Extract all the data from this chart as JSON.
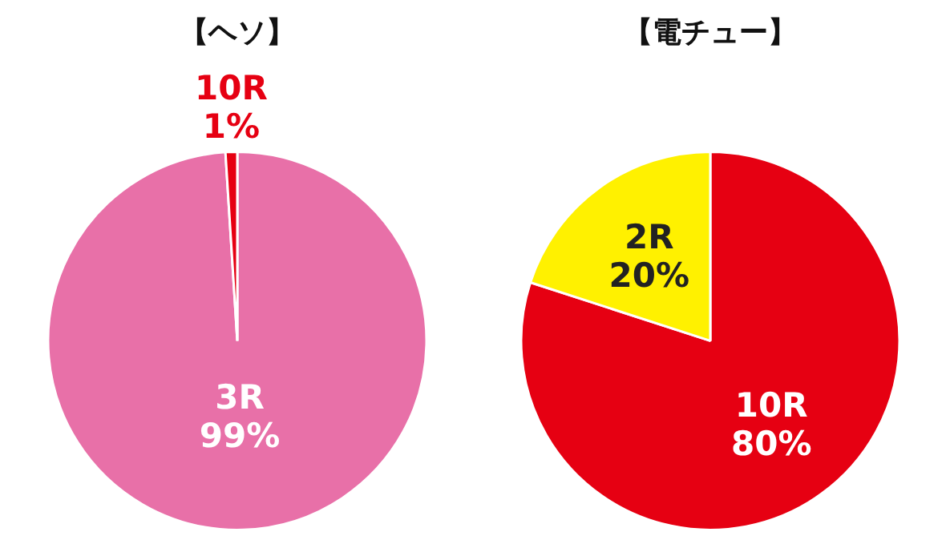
{
  "chart_data": [
    {
      "type": "pie",
      "title": "【ヘソ】",
      "categories": [
        "3R",
        "10R"
      ],
      "values": [
        99,
        1
      ],
      "value_labels": [
        "99%",
        "1%"
      ],
      "colors": [
        "#e870a8",
        "#e60012"
      ]
    },
    {
      "type": "pie",
      "title": "【電チュー】",
      "categories": [
        "10R",
        "2R"
      ],
      "values": [
        80,
        20
      ],
      "value_labels": [
        "80%",
        "20%"
      ],
      "colors": [
        "#e60012",
        "#fff100"
      ]
    }
  ]
}
